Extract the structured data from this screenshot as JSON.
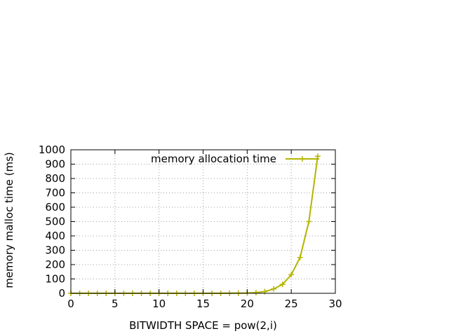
{
  "chart_data": {
    "type": "line",
    "xlabel": "BITWIDTH SPACE = pow(2,i)",
    "ylabel": "memory malloc time (ms)",
    "xlim": [
      0,
      30
    ],
    "ylim": [
      0,
      1000
    ],
    "xticks": [
      0,
      5,
      10,
      15,
      20,
      25,
      30
    ],
    "yticks": [
      0,
      100,
      200,
      300,
      400,
      500,
      600,
      700,
      800,
      900,
      1000
    ],
    "grid": true,
    "legend_position": "top-right",
    "series": [
      {
        "name": "memory allocation time",
        "color": "#b4b400",
        "marker": "plus",
        "x": [
          0,
          1,
          2,
          3,
          4,
          5,
          6,
          7,
          8,
          9,
          10,
          11,
          12,
          13,
          14,
          15,
          16,
          17,
          18,
          19,
          20,
          21,
          22,
          23,
          24,
          25,
          26,
          27,
          28
        ],
        "y": [
          0,
          0,
          0,
          0,
          0,
          0,
          0,
          0,
          0,
          0,
          0,
          0,
          0,
          0,
          0,
          0,
          0,
          0,
          0.5,
          1,
          2,
          5,
          12,
          30,
          62,
          130,
          250,
          500,
          955
        ]
      }
    ]
  }
}
